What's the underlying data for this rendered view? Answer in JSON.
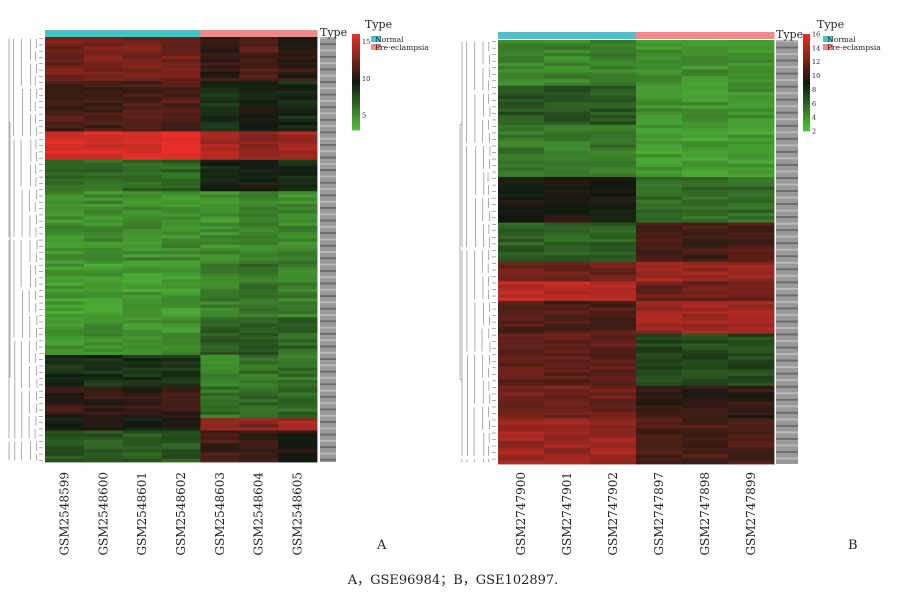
{
  "caption": "A，GSE96984；B，GSE102897.",
  "chart_data": [
    {
      "type": "heatmap",
      "panel_label": "A",
      "columns": [
        "GSM2548599",
        "GSM2548600",
        "GSM2548601",
        "GSM2548602",
        "GSM2548603",
        "GSM2548604",
        "GSM2548605"
      ],
      "groups": [
        "Normal",
        "Normal",
        "Normal",
        "Normal",
        "Pre-eclampsia",
        "Pre-eclampsia",
        "Pre-eclampsia"
      ],
      "type_label": "Type",
      "legend_title": "Type",
      "legend_entries": [
        {
          "name": "Normal",
          "color": "#4dc0c8"
        },
        {
          "name": "Pre-eclampsia",
          "color": "#f08a8a"
        }
      ],
      "color_scale": {
        "low": "#55c03a",
        "mid": "#101810",
        "high": "#e83028"
      },
      "colorbar_ticks": [
        15,
        10,
        5
      ],
      "value_range": [
        3,
        16
      ],
      "row_blocks": [
        {
          "rows": 14,
          "level": [
            12.5,
            12.5,
            12.5,
            12.5,
            10.5,
            11.2,
            10.5
          ]
        },
        {
          "rows": 16,
          "level": [
            11.2,
            11.0,
            11.2,
            11.5,
            8.5,
            9.5,
            8.8
          ]
        },
        {
          "rows": 9,
          "level": [
            15.5,
            15.5,
            15.5,
            15.5,
            14.0,
            13.5,
            14.0
          ]
        },
        {
          "rows": 10,
          "level": [
            6.5,
            6.5,
            6.5,
            6.5,
            9.0,
            9.5,
            8.5
          ]
        },
        {
          "rows": 22,
          "level": [
            5.0,
            5.0,
            5.0,
            5.0,
            5.0,
            5.5,
            5.2
          ]
        },
        {
          "rows": 18,
          "level": [
            4.5,
            4.5,
            4.5,
            4.5,
            5.5,
            6.0,
            5.5
          ]
        },
        {
          "rows": 12,
          "level": [
            4.8,
            4.8,
            4.8,
            4.8,
            7.0,
            7.0,
            6.5
          ]
        },
        {
          "rows": 10,
          "level": [
            8.5,
            8.5,
            8.5,
            8.5,
            5.5,
            6.0,
            6.0
          ]
        },
        {
          "rows": 10,
          "level": [
            10.5,
            10.5,
            10.5,
            10.5,
            6.0,
            6.5,
            6.5
          ]
        },
        {
          "rows": 4,
          "level": [
            9.5,
            9.5,
            9.5,
            9.5,
            14.0,
            13.0,
            13.5
          ]
        },
        {
          "rows": 10,
          "level": [
            7.0,
            7.0,
            7.0,
            7.0,
            11.0,
            10.5,
            10.0
          ]
        }
      ]
    },
    {
      "type": "heatmap",
      "panel_label": "B",
      "columns": [
        "GSM2747900",
        "GSM2747901",
        "GSM2747902",
        "GSM2747897",
        "GSM2747898",
        "GSM2747899"
      ],
      "groups": [
        "Normal",
        "Normal",
        "Normal",
        "Pre-eclampsia",
        "Pre-eclampsia",
        "Pre-eclampsia"
      ],
      "type_label": "Type",
      "legend_title": "Type",
      "legend_entries": [
        {
          "name": "Normal",
          "color": "#4dc0c8"
        },
        {
          "name": "Pre-eclampsia",
          "color": "#f08a8a"
        }
      ],
      "color_scale": {
        "low": "#55c03a",
        "mid": "#101810",
        "high": "#e83028"
      },
      "colorbar_ticks": [
        16,
        14,
        12,
        10,
        8,
        6,
        4,
        2
      ],
      "value_range": [
        2,
        16
      ],
      "row_blocks": [
        {
          "rows": 14,
          "level": [
            4.5,
            4.5,
            4.5,
            4.0,
            4.0,
            4.0
          ]
        },
        {
          "rows": 12,
          "level": [
            6.5,
            6.5,
            6.5,
            4.0,
            3.8,
            4.0
          ]
        },
        {
          "rows": 16,
          "level": [
            5.0,
            5.0,
            5.0,
            3.5,
            3.5,
            3.5
          ]
        },
        {
          "rows": 14,
          "level": [
            9.0,
            9.5,
            9.0,
            5.5,
            5.5,
            5.5
          ]
        },
        {
          "rows": 12,
          "level": [
            6.0,
            6.0,
            6.0,
            11.0,
            10.5,
            11.0
          ]
        },
        {
          "rows": 6,
          "level": [
            12.0,
            12.0,
            12.0,
            13.5,
            13.5,
            13.5
          ]
        },
        {
          "rows": 6,
          "level": [
            14.5,
            14.5,
            14.5,
            12.0,
            12.0,
            12.0
          ]
        },
        {
          "rows": 10,
          "level": [
            11.0,
            11.0,
            11.0,
            13.5,
            13.5,
            13.5
          ]
        },
        {
          "rows": 16,
          "level": [
            11.5,
            11.5,
            11.5,
            7.0,
            7.0,
            7.0
          ]
        },
        {
          "rows": 10,
          "level": [
            12.0,
            12.0,
            12.0,
            10.0,
            10.0,
            10.0
          ]
        },
        {
          "rows": 14,
          "level": [
            13.5,
            13.5,
            13.5,
            11.0,
            11.0,
            11.0
          ]
        }
      ]
    }
  ]
}
